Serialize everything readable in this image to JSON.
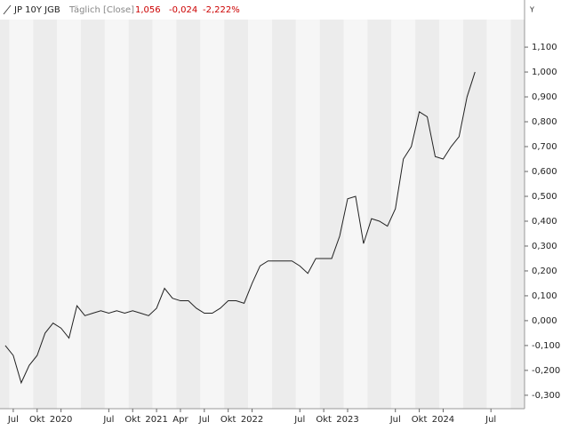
{
  "chart_data": {
    "type": "line",
    "title": "JP 10Y JGB",
    "subtitle": "Täglich [Close]",
    "last": "1,056",
    "change": "-0,024",
    "change_pct": "-2,222%",
    "y_axis_label": "Y",
    "x": [
      "2019-06",
      "2019-07",
      "2019-08",
      "2019-09",
      "2019-10",
      "2019-11",
      "2019-12",
      "2020-01",
      "2020-02",
      "2020-03",
      "2020-04",
      "2020-05",
      "2020-06",
      "2020-07",
      "2020-08",
      "2020-09",
      "2020-10",
      "2020-11",
      "2020-12",
      "2021-01",
      "2021-02",
      "2021-03",
      "2021-04",
      "2021-05",
      "2021-06",
      "2021-07",
      "2021-08",
      "2021-09",
      "2021-10",
      "2021-11",
      "2021-12",
      "2022-01",
      "2022-02",
      "2022-03",
      "2022-04",
      "2022-05",
      "2022-06",
      "2022-07",
      "2022-08",
      "2022-09",
      "2022-10",
      "2022-11",
      "2022-12",
      "2023-01",
      "2023-02",
      "2023-03",
      "2023-04",
      "2023-05",
      "2023-06",
      "2023-07",
      "2023-08",
      "2023-09",
      "2023-10",
      "2023-11",
      "2023-12",
      "2024-01",
      "2024-02",
      "2024-03",
      "2024-04",
      "2024-05"
    ],
    "series": [
      {
        "name": "JP 10Y JGB",
        "color": "#222222",
        "values": [
          -0.1,
          -0.14,
          -0.25,
          -0.18,
          -0.14,
          -0.05,
          -0.01,
          -0.03,
          -0.07,
          0.06,
          0.02,
          0.03,
          0.04,
          0.03,
          0.04,
          0.03,
          0.04,
          0.03,
          0.02,
          0.05,
          0.13,
          0.09,
          0.08,
          0.08,
          0.05,
          0.03,
          0.03,
          0.05,
          0.08,
          0.08,
          0.07,
          0.15,
          0.22,
          0.24,
          0.24,
          0.24,
          0.24,
          0.22,
          0.19,
          0.25,
          0.25,
          0.25,
          0.34,
          0.49,
          0.5,
          0.31,
          0.41,
          0.4,
          0.38,
          0.45,
          0.65,
          0.7,
          0.84,
          0.82,
          0.66,
          0.65,
          0.7,
          0.74,
          0.9,
          1.0
        ]
      }
    ],
    "xlim": [
      "2019-05",
      "2024-11"
    ],
    "xticks": [
      {
        "value": "2019-07",
        "label": "Jul"
      },
      {
        "value": "2019-10",
        "label": "Okt"
      },
      {
        "value": "2020-01",
        "label": "2020"
      },
      {
        "value": "2020-07",
        "label": "Jul"
      },
      {
        "value": "2020-10",
        "label": "Okt"
      },
      {
        "value": "2021-01",
        "label": "2021"
      },
      {
        "value": "2021-04",
        "label": "Apr"
      },
      {
        "value": "2021-07",
        "label": "Jul"
      },
      {
        "value": "2021-10",
        "label": "Okt"
      },
      {
        "value": "2022-01",
        "label": "2022"
      },
      {
        "value": "2022-07",
        "label": "Jul"
      },
      {
        "value": "2022-10",
        "label": "Okt"
      },
      {
        "value": "2023-01",
        "label": "2023"
      },
      {
        "value": "2023-07",
        "label": "Jul"
      },
      {
        "value": "2023-10",
        "label": "Okt"
      },
      {
        "value": "2024-01",
        "label": "2024"
      },
      {
        "value": "2024-07",
        "label": "Jul"
      }
    ],
    "ylim": [
      -0.354,
      1.211
    ],
    "yticks": [
      {
        "value": 1.1,
        "label": "1,100"
      },
      {
        "value": 1.0,
        "label": "1,000"
      },
      {
        "value": 0.9,
        "label": "0,900"
      },
      {
        "value": 0.8,
        "label": "0,800"
      },
      {
        "value": 0.7,
        "label": "0,700"
      },
      {
        "value": 0.6,
        "label": "0,600"
      },
      {
        "value": 0.5,
        "label": "0,500"
      },
      {
        "value": 0.4,
        "label": "0,400"
      },
      {
        "value": 0.3,
        "label": "0,300"
      },
      {
        "value": 0.2,
        "label": "0,200"
      },
      {
        "value": 0.1,
        "label": "0,100"
      },
      {
        "value": 0,
        "label": "0,000"
      },
      {
        "value": -0.1,
        "label": "-0,100"
      },
      {
        "value": -0.2,
        "label": "-0,200"
      },
      {
        "value": -0.3,
        "label": "-0,300"
      }
    ]
  }
}
